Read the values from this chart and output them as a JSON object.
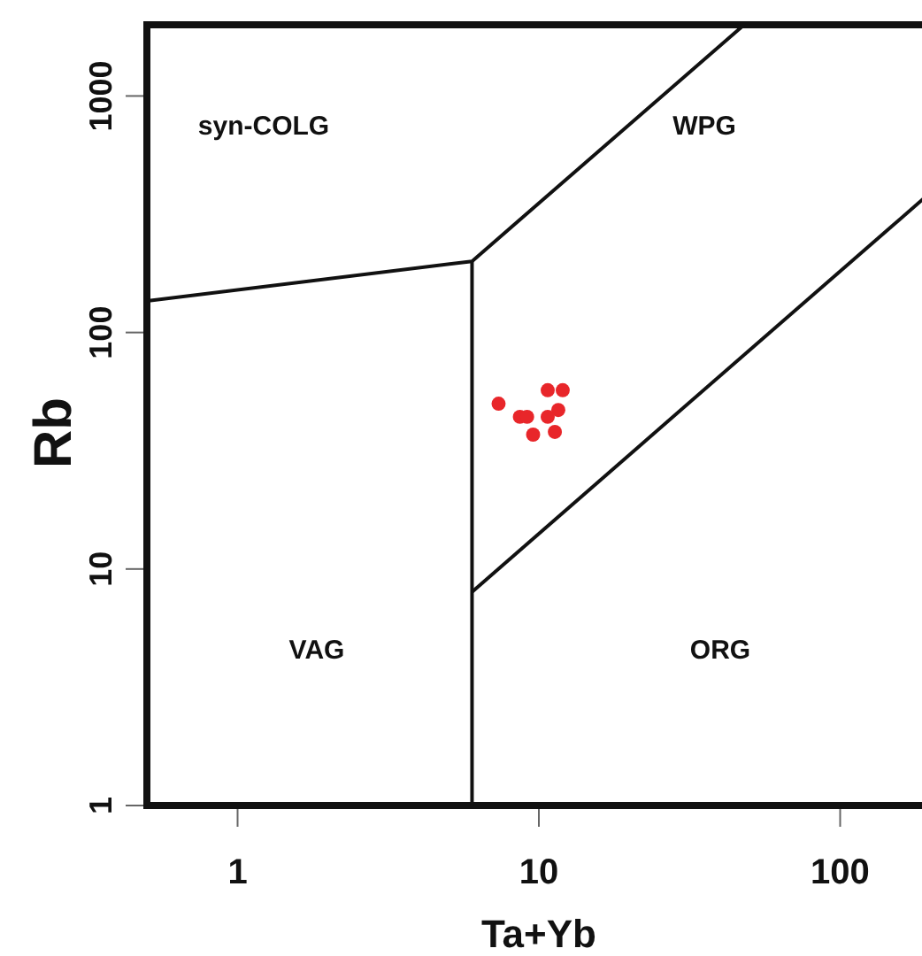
{
  "chart_data": {
    "type": "scatter",
    "xlabel": "Ta+Yb",
    "ylabel": "Rb",
    "log": "xy",
    "grid": false,
    "marker": "circle",
    "xlim": [
      0.5,
      200
    ],
    "ylim": [
      1,
      2000
    ],
    "xticks": [
      1,
      10,
      100
    ],
    "yticks": [
      1,
      10,
      100,
      1000
    ],
    "series": [
      {
        "color": "#e8262a",
        "x": [
          7.35,
          8.65,
          9.14,
          9.57,
          10.7,
          12.0,
          11.6,
          10.7,
          11.3
        ],
        "values": [
          50,
          44,
          44,
          37,
          57,
          57,
          47,
          44,
          38
        ]
      },
      {
        "type": "line",
        "color": "#111111",
        "line_style": "solid",
        "marker": "none",
        "x": [
          0.5,
          6,
          48
        ],
        "values": [
          136,
          200,
          2000
        ]
      },
      {
        "type": "line",
        "color": "#111111",
        "line_style": "solid",
        "marker": "none",
        "x": [
          6,
          6
        ],
        "values": [
          1,
          200
        ]
      },
      {
        "type": "line",
        "color": "#111111",
        "line_style": "solid",
        "marker": "none",
        "x": [
          6,
          190
        ],
        "values": [
          8,
          370
        ]
      }
    ],
    "annotations": [
      "syn-COLG",
      "WPG",
      "VAG",
      "ORG"
    ]
  }
}
